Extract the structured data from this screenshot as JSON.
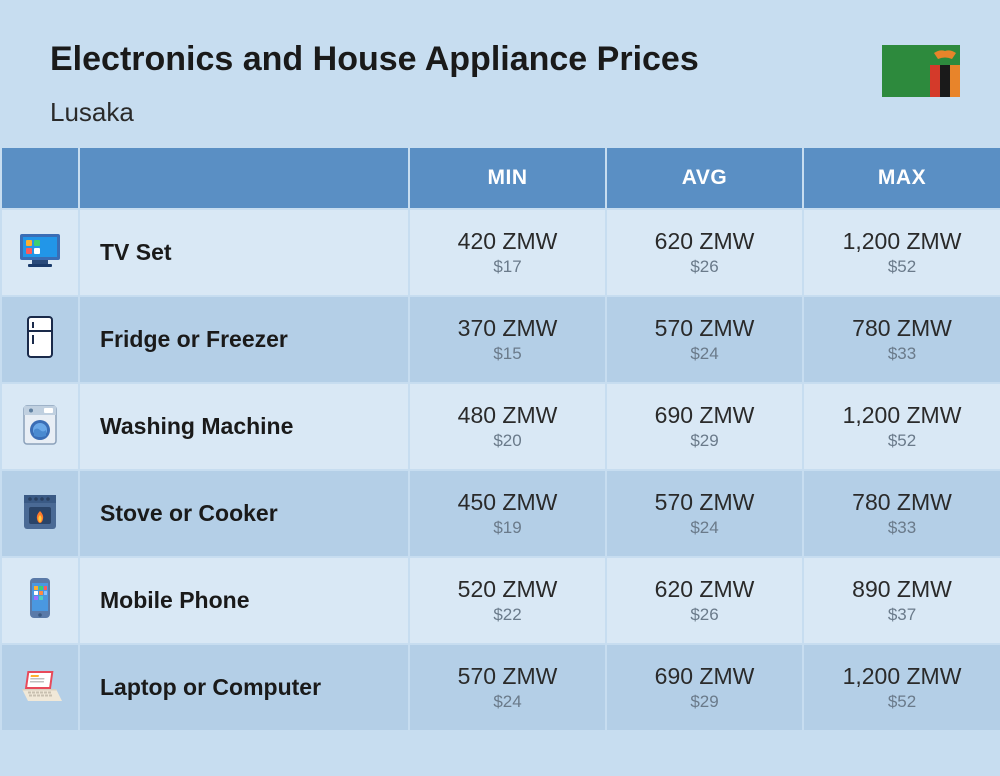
{
  "header": {
    "title": "Electronics and House Appliance Prices",
    "city": "Lusaka"
  },
  "columns": {
    "min": "MIN",
    "avg": "AVG",
    "max": "MAX"
  },
  "colors": {
    "page_bg": "#c7ddf0",
    "header_bg": "#5a8fc4",
    "header_text": "#ffffff",
    "row_odd": "#d9e8f5",
    "row_even": "#b4cfe7",
    "text_primary": "#1a1a1a",
    "text_value": "#2a2a2a",
    "text_secondary": "#6a7a8a",
    "border": "#c7ddf0"
  },
  "flag": {
    "bg": "#2d8a3d",
    "stripes": [
      "#d43a2a",
      "#1a1a1a",
      "#e8842a"
    ],
    "eagle": "#e8842a"
  },
  "rows": [
    {
      "icon": "tv",
      "name": "TV Set",
      "min_zmw": "420 ZMW",
      "min_usd": "$17",
      "avg_zmw": "620 ZMW",
      "avg_usd": "$26",
      "max_zmw": "1,200 ZMW",
      "max_usd": "$52"
    },
    {
      "icon": "fridge",
      "name": "Fridge or Freezer",
      "min_zmw": "370 ZMW",
      "min_usd": "$15",
      "avg_zmw": "570 ZMW",
      "avg_usd": "$24",
      "max_zmw": "780 ZMW",
      "max_usd": "$33"
    },
    {
      "icon": "washer",
      "name": "Washing Machine",
      "min_zmw": "480 ZMW",
      "min_usd": "$20",
      "avg_zmw": "690 ZMW",
      "avg_usd": "$29",
      "max_zmw": "1,200 ZMW",
      "max_usd": "$52"
    },
    {
      "icon": "stove",
      "name": "Stove or Cooker",
      "min_zmw": "450 ZMW",
      "min_usd": "$19",
      "avg_zmw": "570 ZMW",
      "avg_usd": "$24",
      "max_zmw": "780 ZMW",
      "max_usd": "$33"
    },
    {
      "icon": "phone",
      "name": "Mobile Phone",
      "min_zmw": "520 ZMW",
      "min_usd": "$22",
      "avg_zmw": "620 ZMW",
      "avg_usd": "$26",
      "max_zmw": "890 ZMW",
      "max_usd": "$37"
    },
    {
      "icon": "laptop",
      "name": "Laptop or Computer",
      "min_zmw": "570 ZMW",
      "min_usd": "$24",
      "avg_zmw": "690 ZMW",
      "avg_usd": "$29",
      "max_zmw": "1,200 ZMW",
      "max_usd": "$52"
    }
  ]
}
